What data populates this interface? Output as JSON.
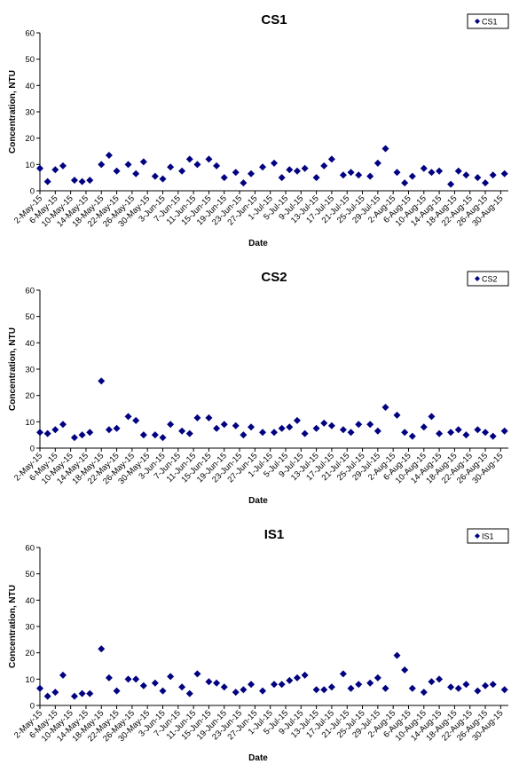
{
  "chart_data": [
    {
      "type": "scatter",
      "title": "CS1",
      "xlabel": "Date",
      "ylabel": "Concentration, NTU",
      "ylim": [
        0,
        60
      ],
      "yticks": [
        0,
        10,
        20,
        30,
        40,
        50,
        60
      ],
      "xticks": [
        "2-May-15",
        "6-May-15",
        "10-May-15",
        "14-May-15",
        "18-May-15",
        "22-May-15",
        "26-May-15",
        "30-May-15",
        "3-Jun-15",
        "7-Jun-15",
        "11-Jun-15",
        "15-Jun-15",
        "19-Jun-15",
        "23-Jun-15",
        "27-Jun-15",
        "1-Jul-15",
        "5-Jul-15",
        "9-Jul-15",
        "13-Jul-15",
        "17-Jul-15",
        "21-Jul-15",
        "25-Jul-15",
        "29-Jul-15",
        "2-Aug-15",
        "6-Aug-15",
        "10-Aug-15",
        "14-Aug-15",
        "18-Aug-15",
        "22-Aug-15",
        "26-Aug-15",
        "30-Aug-15"
      ],
      "xlim": [
        "2-May-15",
        "1-Sep-15"
      ],
      "grid": false,
      "legend_position": "top-right",
      "marker_color": "#000080",
      "series": [
        {
          "name": "CS1",
          "x": [
            "2-May-15",
            "4-May-15",
            "6-May-15",
            "8-May-15",
            "11-May-15",
            "13-May-15",
            "15-May-15",
            "18-May-15",
            "20-May-15",
            "22-May-15",
            "25-May-15",
            "27-May-15",
            "29-May-15",
            "1-Jun-15",
            "3-Jun-15",
            "5-Jun-15",
            "8-Jun-15",
            "10-Jun-15",
            "12-Jun-15",
            "15-Jun-15",
            "17-Jun-15",
            "19-Jun-15",
            "22-Jun-15",
            "24-Jun-15",
            "26-Jun-15",
            "29-Jun-15",
            "2-Jul-15",
            "4-Jul-15",
            "6-Jul-15",
            "8-Jul-15",
            "10-Jul-15",
            "13-Jul-15",
            "15-Jul-15",
            "17-Jul-15",
            "20-Jul-15",
            "22-Jul-15",
            "24-Jul-15",
            "27-Jul-15",
            "29-Jul-15",
            "31-Jul-15",
            "3-Aug-15",
            "5-Aug-15",
            "7-Aug-15",
            "10-Aug-15",
            "12-Aug-15",
            "14-Aug-15",
            "17-Aug-15",
            "19-Aug-15",
            "21-Aug-15",
            "24-Aug-15",
            "26-Aug-15",
            "28-Aug-15",
            "31-Aug-15"
          ],
          "y": [
            8.5,
            3.5,
            8,
            9.5,
            4,
            3.5,
            4,
            10,
            13.5,
            7.5,
            10,
            6.5,
            11,
            5.5,
            4.5,
            9,
            7.5,
            12,
            10,
            12,
            9.5,
            5,
            7,
            3,
            6.5,
            9,
            10.5,
            5,
            8,
            7.5,
            8.5,
            5,
            9.5,
            12,
            6,
            7,
            6,
            5.5,
            10.5,
            16,
            7,
            3,
            5.5,
            8.5,
            7,
            7.5,
            2.5,
            7.5,
            6,
            5,
            3,
            6,
            6.5
          ]
        }
      ]
    },
    {
      "type": "scatter",
      "title": "CS2",
      "xlabel": "Date",
      "ylabel": "Concentration, NTU",
      "ylim": [
        0,
        60
      ],
      "yticks": [
        0,
        10,
        20,
        30,
        40,
        50,
        60
      ],
      "xticks": [
        "2-May-15",
        "6-May-15",
        "10-May-15",
        "14-May-15",
        "18-May-15",
        "22-May-15",
        "26-May-15",
        "30-May-15",
        "3-Jun-15",
        "7-Jun-15",
        "11-Jun-15",
        "15-Jun-15",
        "19-Jun-15",
        "23-Jun-15",
        "27-Jun-15",
        "1-Jul-15",
        "5-Jul-15",
        "9-Jul-15",
        "13-Jul-15",
        "17-Jul-15",
        "21-Jul-15",
        "25-Jul-15",
        "29-Jul-15",
        "2-Aug-15",
        "6-Aug-15",
        "10-Aug-15",
        "14-Aug-15",
        "18-Aug-15",
        "22-Aug-15",
        "26-Aug-15",
        "30-Aug-15"
      ],
      "xlim": [
        "2-May-15",
        "1-Sep-15"
      ],
      "grid": false,
      "legend_position": "top-right",
      "marker_color": "#000080",
      "series": [
        {
          "name": "CS2",
          "x": [
            "2-May-15",
            "4-May-15",
            "6-May-15",
            "8-May-15",
            "11-May-15",
            "13-May-15",
            "15-May-15",
            "18-May-15",
            "20-May-15",
            "22-May-15",
            "25-May-15",
            "27-May-15",
            "29-May-15",
            "1-Jun-15",
            "3-Jun-15",
            "5-Jun-15",
            "8-Jun-15",
            "10-Jun-15",
            "12-Jun-15",
            "15-Jun-15",
            "17-Jun-15",
            "19-Jun-15",
            "22-Jun-15",
            "24-Jun-15",
            "26-Jun-15",
            "29-Jun-15",
            "2-Jul-15",
            "4-Jul-15",
            "6-Jul-15",
            "8-Jul-15",
            "10-Jul-15",
            "13-Jul-15",
            "15-Jul-15",
            "17-Jul-15",
            "20-Jul-15",
            "22-Jul-15",
            "24-Jul-15",
            "27-Jul-15",
            "29-Jul-15",
            "31-Jul-15",
            "3-Aug-15",
            "5-Aug-15",
            "7-Aug-15",
            "10-Aug-15",
            "12-Aug-15",
            "14-Aug-15",
            "17-Aug-15",
            "19-Aug-15",
            "21-Aug-15",
            "24-Aug-15",
            "26-Aug-15",
            "28-Aug-15",
            "31-Aug-15"
          ],
          "y": [
            6,
            5.5,
            7,
            9,
            4,
            5,
            6,
            25.5,
            7,
            7.5,
            12,
            10.5,
            5,
            5,
            4,
            9,
            6.5,
            5.5,
            11.5,
            11.5,
            7.5,
            9,
            8.5,
            5,
            8,
            6,
            6,
            7.5,
            8,
            10.5,
            5.5,
            7.5,
            9.5,
            8.5,
            7,
            6,
            9,
            9,
            6.5,
            15.5,
            12.5,
            6,
            4.5,
            8,
            12,
            5.5,
            6,
            7,
            5,
            7,
            6,
            4.5,
            6.5
          ]
        }
      ]
    },
    {
      "type": "scatter",
      "title": "IS1",
      "xlabel": "Date",
      "ylabel": "Concentration, NTU",
      "ylim": [
        0,
        60
      ],
      "yticks": [
        0,
        10,
        20,
        30,
        40,
        50,
        60
      ],
      "xticks": [
        "2-May-15",
        "6-May-15",
        "10-May-15",
        "14-May-15",
        "18-May-15",
        "22-May-15",
        "26-May-15",
        "30-May-15",
        "3-Jun-15",
        "7-Jun-15",
        "11-Jun-15",
        "15-Jun-15",
        "19-Jun-15",
        "23-Jun-15",
        "27-Jun-15",
        "1-Jul-15",
        "5-Jul-15",
        "9-Jul-15",
        "13-Jul-15",
        "17-Jul-15",
        "21-Jul-15",
        "25-Jul-15",
        "29-Jul-15",
        "2-Aug-15",
        "6-Aug-15",
        "10-Aug-15",
        "14-Aug-15",
        "18-Aug-15",
        "22-Aug-15",
        "26-Aug-15",
        "30-Aug-15"
      ],
      "xlim": [
        "2-May-15",
        "1-Sep-15"
      ],
      "grid": false,
      "legend_position": "top-right",
      "marker_color": "#000080",
      "series": [
        {
          "name": "IS1",
          "x": [
            "2-May-15",
            "4-May-15",
            "6-May-15",
            "8-May-15",
            "11-May-15",
            "13-May-15",
            "15-May-15",
            "18-May-15",
            "20-May-15",
            "22-May-15",
            "25-May-15",
            "27-May-15",
            "29-May-15",
            "1-Jun-15",
            "3-Jun-15",
            "5-Jun-15",
            "8-Jun-15",
            "10-Jun-15",
            "12-Jun-15",
            "15-Jun-15",
            "17-Jun-15",
            "19-Jun-15",
            "22-Jun-15",
            "24-Jun-15",
            "26-Jun-15",
            "29-Jun-15",
            "2-Jul-15",
            "4-Jul-15",
            "6-Jul-15",
            "8-Jul-15",
            "10-Jul-15",
            "13-Jul-15",
            "15-Jul-15",
            "17-Jul-15",
            "20-Jul-15",
            "22-Jul-15",
            "24-Jul-15",
            "27-Jul-15",
            "29-Jul-15",
            "31-Jul-15",
            "3-Aug-15",
            "5-Aug-15",
            "7-Aug-15",
            "10-Aug-15",
            "12-Aug-15",
            "14-Aug-15",
            "17-Aug-15",
            "19-Aug-15",
            "21-Aug-15",
            "24-Aug-15",
            "26-Aug-15",
            "28-Aug-15",
            "31-Aug-15"
          ],
          "y": [
            6.5,
            3.5,
            5,
            11.5,
            3.5,
            4.5,
            4.5,
            21.5,
            10.5,
            5.5,
            10,
            10,
            7.5,
            8.5,
            5.5,
            11,
            7,
            4.5,
            12,
            9,
            8.5,
            7,
            5,
            6,
            8,
            5.5,
            8,
            8,
            9.5,
            10.5,
            11.5,
            6,
            6,
            7,
            12,
            6.5,
            8,
            8.5,
            10.5,
            6.5,
            19,
            13.5,
            6.5,
            5,
            9,
            10,
            7,
            6.5,
            8,
            5.5,
            7.5,
            8,
            6
          ]
        }
      ]
    }
  ]
}
